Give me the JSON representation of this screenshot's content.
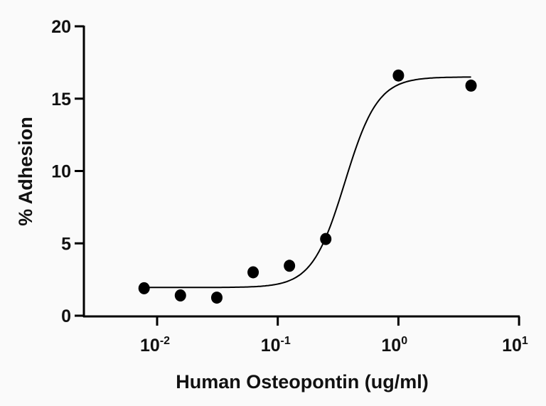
{
  "chart_data": {
    "type": "scatter",
    "title": "",
    "xlabel": "Human Osteopontin (ug/ml)",
    "ylabel": "% Adhesion",
    "x_scale": "log10",
    "xlim": [
      0.0026,
      10
    ],
    "ylim": [
      0,
      20
    ],
    "x_ticks": [
      {
        "base": "10",
        "exp": "-2",
        "value": 0.01
      },
      {
        "base": "10",
        "exp": "-1",
        "value": 0.1
      },
      {
        "base": "10",
        "exp": "0",
        "value": 1
      },
      {
        "base": "10",
        "exp": "1",
        "value": 10
      }
    ],
    "y_ticks": [
      "0",
      "5",
      "10",
      "15",
      "20"
    ],
    "grid": false,
    "points": [
      {
        "x": 0.0078,
        "y": 1.9
      },
      {
        "x": 0.0156,
        "y": 1.4
      },
      {
        "x": 0.03125,
        "y": 1.25
      },
      {
        "x": 0.0625,
        "y": 3.0
      },
      {
        "x": 0.125,
        "y": 3.45
      },
      {
        "x": 0.25,
        "y": 5.3
      },
      {
        "x": 1.0,
        "y": 16.6
      },
      {
        "x": 4.0,
        "y": 15.9
      }
    ],
    "fit": {
      "model": "four-parameter logistic",
      "bottom": 1.95,
      "top": 16.5,
      "ec50": 0.36,
      "hill": 3.2,
      "x_range": [
        0.0078,
        4.0
      ]
    },
    "colors": {
      "points": "#000000",
      "line": "#000000"
    }
  }
}
